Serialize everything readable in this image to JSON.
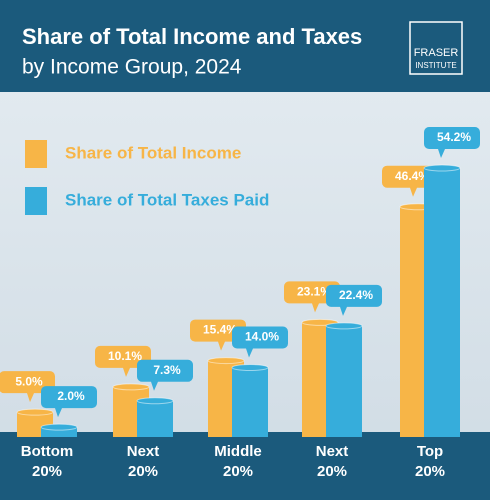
{
  "chart_data": {
    "type": "bar",
    "title": "Share of Total Income and Taxes",
    "subtitle": "by Income Group, 2024",
    "logo": [
      "FRASER",
      "INSTITUTE"
    ],
    "categories": [
      "Bottom 20%",
      "Next 20%",
      "Middle 20%",
      "Next 20%",
      "Top 20%"
    ],
    "series": [
      {
        "name": "Share of Total Income",
        "color": "#f7b547",
        "values": [
          5.0,
          10.1,
          15.4,
          23.1,
          46.4
        ],
        "value_labels": [
          "5.0%",
          "10.1%",
          "15.4%",
          "23.1%",
          "46.4%"
        ]
      },
      {
        "name": "Share of Total Taxes Paid",
        "color": "#36addb",
        "values": [
          2.0,
          7.3,
          14.0,
          22.4,
          54.2
        ],
        "value_labels": [
          "2.0%",
          "7.3%",
          "14.0%",
          "22.4%",
          "54.2%"
        ]
      }
    ]
  }
}
